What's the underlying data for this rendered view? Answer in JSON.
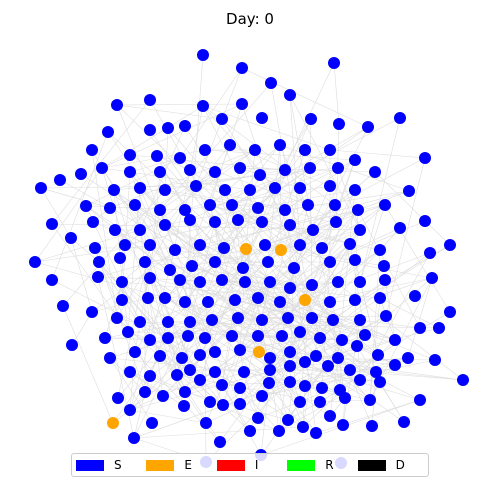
{
  "title": "Day: 0",
  "edge_color": "#dddddd",
  "legend": [
    {
      "label": "S",
      "color": "#0000ff"
    },
    {
      "label": "E",
      "color": "#ffa500"
    },
    {
      "label": "I",
      "color": "#ff0000"
    },
    {
      "label": "R",
      "color": "#00ff00"
    },
    {
      "label": "D",
      "color": "#000000"
    }
  ],
  "state_colors": {
    "S": "#0000ff",
    "E": "#ffa500",
    "I": "#ff0000",
    "R": "#00ff00",
    "D": "#000000"
  },
  "exposed_count": 5
}
